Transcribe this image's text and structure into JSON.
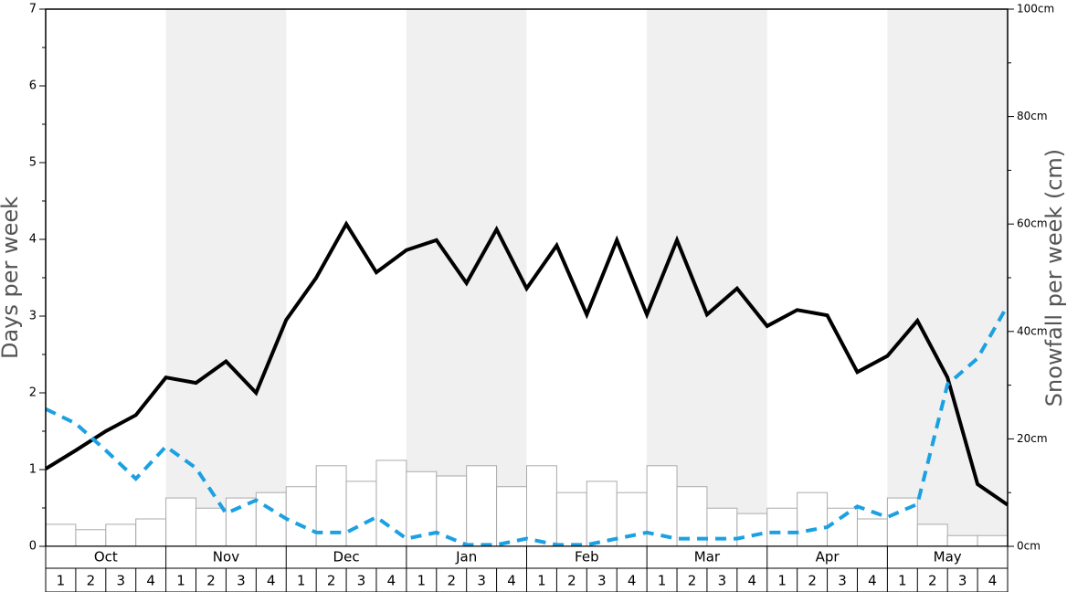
{
  "chart_data": {
    "type": "bar-line",
    "y_label": "Days per week",
    "y2_label": "Snowfall per week (cm)",
    "months": [
      "Oct",
      "Nov",
      "Dec",
      "Jan",
      "Feb",
      "Mar",
      "Apr",
      "May"
    ],
    "weeks": [
      "1",
      "2",
      "3",
      "4"
    ],
    "shaded_months": [
      false,
      true,
      false,
      true,
      false,
      true,
      false,
      true
    ],
    "shade_color": "#f0f0f0",
    "ylim": [
      0,
      7
    ],
    "yticks": [
      0,
      1,
      2,
      3,
      4,
      5,
      6,
      7
    ],
    "yminorticks": [
      0.5,
      1.5,
      2.5,
      3.5,
      4.5,
      5.5,
      6.5
    ],
    "y2lim": [
      0,
      100
    ],
    "y2ticks": [
      {
        "value": 0,
        "label": "0cm"
      },
      {
        "value": 20,
        "label": "20cm"
      },
      {
        "value": 40,
        "label": "40cm"
      },
      {
        "value": 60,
        "label": "60cm"
      },
      {
        "value": 80,
        "label": "80cm"
      },
      {
        "value": 100,
        "label": "100cm"
      }
    ],
    "y2minorticks": [
      10,
      30,
      50,
      70,
      90
    ],
    "bars": {
      "axis": "y2",
      "color": "#ffffff",
      "edge": "#aaaaaa",
      "values": [
        4.1,
        3.1,
        4.1,
        5.1,
        9.0,
        7.1,
        9.0,
        10.0,
        11.1,
        15.0,
        12.1,
        16.0,
        13.9,
        13.1,
        15.0,
        11.1,
        15.0,
        10.0,
        12.1,
        10.0,
        15.0,
        11.1,
        7.1,
        6.1,
        7.1,
        10.0,
        7.1,
        5.1,
        9.0,
        4.1,
        2.0,
        2.0
      ]
    },
    "series": [
      {
        "color": "#000000",
        "dashed": false,
        "values": [
          1.01,
          1.25,
          1.5,
          1.71,
          2.2,
          2.13,
          2.41,
          2.0,
          2.95,
          3.5,
          4.2,
          3.57,
          3.86,
          3.99,
          3.43,
          4.13,
          3.36,
          3.92,
          3.02,
          3.99,
          3.02,
          3.99,
          3.02,
          3.36,
          2.87,
          3.08,
          3.01,
          2.27,
          2.48,
          2.94,
          2.2,
          0.81,
          0.54
        ]
      },
      {
        "color": "#1ba1e2",
        "dashed": true,
        "values": [
          1.79,
          1.6,
          1.25,
          0.88,
          1.3,
          1.02,
          0.43,
          0.6,
          0.36,
          0.18,
          0.18,
          0.38,
          0.1,
          0.18,
          0.02,
          0.02,
          0.1,
          0.02,
          0.02,
          0.1,
          0.18,
          0.1,
          0.1,
          0.1,
          0.18,
          0.18,
          0.25,
          0.52,
          0.38,
          0.55,
          2.11,
          2.45,
          3.14
        ]
      }
    ]
  }
}
